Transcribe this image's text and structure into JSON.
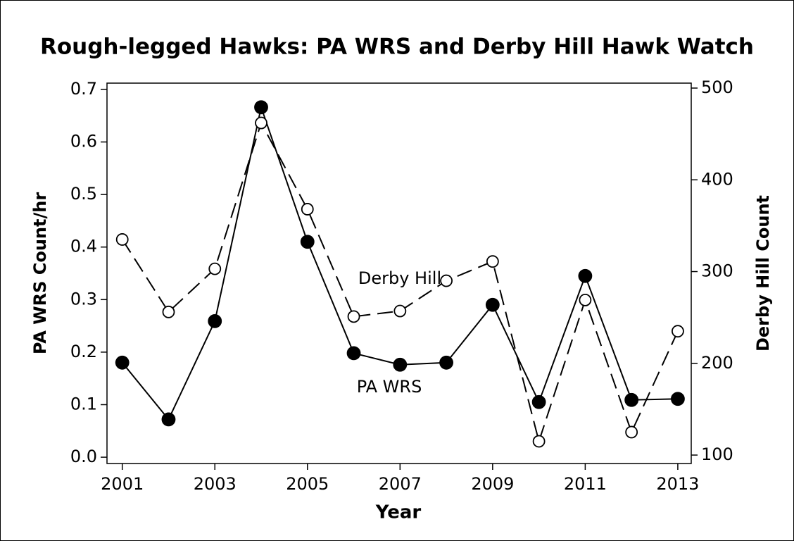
{
  "chart_data": {
    "type": "line",
    "title": "Rough-legged Hawks: PA WRS and Derby Hill Hawk Watch",
    "xlabel": "Year",
    "ylabel": "PA WRS Count/hr",
    "y2label": "Derby Hill Count",
    "x": [
      2001,
      2002,
      2003,
      2004,
      2005,
      2006,
      2007,
      2008,
      2009,
      2010,
      2011,
      2012,
      2013
    ],
    "series": [
      {
        "name": "PA WRS",
        "color": "#000000",
        "marker": "filled",
        "dash": false,
        "values": [
          0.18,
          0.072,
          0.259,
          0.666,
          0.41,
          0.198,
          0.176,
          0.18,
          0.29,
          0.105,
          0.345,
          0.109,
          0.111
        ]
      },
      {
        "name": "Derby Hill",
        "color": "#000000",
        "marker": "open",
        "dash": true,
        "axis": "y2",
        "values": [
          335,
          256,
          303,
          462,
          368,
          251,
          257,
          290,
          311,
          115,
          269,
          125,
          235
        ]
      }
    ],
    "xlim": [
      2000.67,
      2013.29
    ],
    "xticks": [
      2001,
      2003,
      2005,
      2007,
      2009,
      2011,
      2013
    ],
    "ylim": [
      -0.012,
      0.712
    ],
    "yticks": [
      {
        "value": 0,
        "label": "0.0"
      },
      0.1,
      0.2,
      0.3,
      0.4,
      0.5,
      0.6,
      0.7
    ],
    "y2lim": [
      90.8,
      505.4
    ],
    "y2ticks": [
      100,
      200,
      300,
      400,
      500
    ]
  }
}
